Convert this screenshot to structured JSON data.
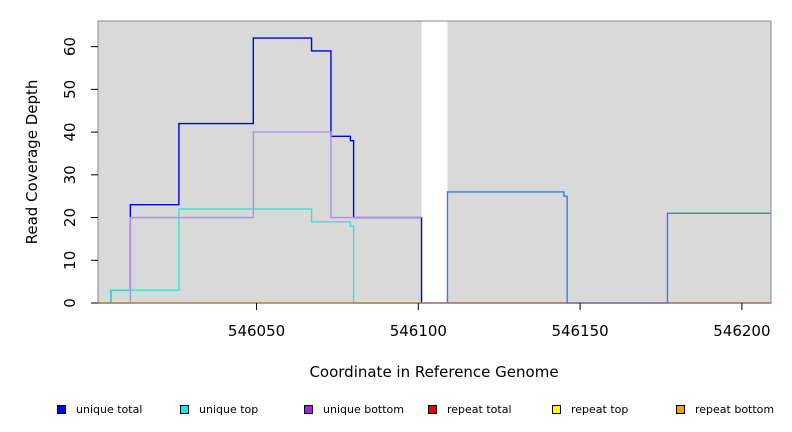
{
  "chart_data": {
    "type": "line",
    "xlabel": "Coordinate in Reference Genome",
    "ylabel": "Read Coverage Depth",
    "xlim": [
      546001,
      546209
    ],
    "ylim": [
      0,
      66
    ],
    "x_ticks": [
      546050,
      546100,
      546150,
      546200
    ],
    "y_ticks": [
      0,
      10,
      20,
      30,
      40,
      50,
      60
    ],
    "x_tick_labels": [
      "546050",
      "546100",
      "546150",
      "546200"
    ],
    "y_tick_labels": [
      "0",
      "10",
      "20",
      "30",
      "40",
      "50",
      "60"
    ],
    "grid": false,
    "background_color": "#d9d9d9",
    "gap_regions": [
      [
        546101,
        546109
      ]
    ],
    "series": [
      {
        "name": "unique total",
        "color": "#0000ee",
        "points": [
          [
            546001,
            0
          ],
          [
            546005,
            0
          ],
          [
            546005,
            3
          ],
          [
            546011,
            3
          ],
          [
            546011,
            23
          ],
          [
            546026,
            23
          ],
          [
            546026,
            42
          ],
          [
            546049,
            42
          ],
          [
            546049,
            62
          ],
          [
            546067,
            62
          ],
          [
            546067,
            59
          ],
          [
            546073,
            59
          ],
          [
            546073,
            39
          ],
          [
            546079,
            39
          ],
          [
            546079,
            38
          ],
          [
            546080,
            38
          ],
          [
            546080,
            20
          ],
          [
            546101,
            20
          ],
          [
            546101,
            0
          ]
        ]
      },
      {
        "name": "unique top",
        "color": "#40e0d0",
        "points": [
          [
            546001,
            0
          ],
          [
            546005,
            0
          ],
          [
            546005,
            3
          ],
          [
            546026,
            3
          ],
          [
            546026,
            22
          ],
          [
            546067,
            22
          ],
          [
            546067,
            19
          ],
          [
            546079,
            19
          ],
          [
            546079,
            18
          ],
          [
            546080,
            18
          ],
          [
            546080,
            0
          ],
          [
            546101,
            0
          ]
        ]
      },
      {
        "name": "unique bottom",
        "color": "#b08ee8",
        "points": [
          [
            546001,
            0
          ],
          [
            546011,
            0
          ],
          [
            546011,
            20
          ],
          [
            546049,
            20
          ],
          [
            546049,
            40
          ],
          [
            546073,
            40
          ],
          [
            546073,
            20
          ],
          [
            546101,
            20
          ]
        ]
      },
      {
        "name": "repeat total",
        "color": "#dd2222",
        "points": [
          [
            546001,
            0
          ],
          [
            546209,
            0
          ]
        ]
      },
      {
        "name": "repeat top",
        "color": "#eeee00",
        "points": [
          [
            546001,
            0
          ],
          [
            546101,
            0
          ]
        ]
      },
      {
        "name": "repeat bottom",
        "color": "#f0a000",
        "points": [
          [
            546001,
            0
          ],
          [
            546101,
            0
          ]
        ]
      },
      {
        "name": "unique total (right segment)",
        "color": "#3a7ae8",
        "points": [
          [
            546109,
            0
          ],
          [
            546109,
            26
          ],
          [
            546145,
            26
          ],
          [
            546145,
            25
          ],
          [
            546146,
            25
          ],
          [
            546146,
            0
          ],
          [
            546177,
            0
          ],
          [
            546177,
            21
          ],
          [
            546209,
            21
          ]
        ]
      }
    ]
  },
  "legend": {
    "items": [
      {
        "label": "unique total",
        "color": "#0000ee"
      },
      {
        "label": "unique top",
        "color": "#00eeee"
      },
      {
        "label": "unique bottom",
        "color": "#a020f0"
      },
      {
        "label": "repeat total",
        "color": "#ee0000"
      },
      {
        "label": "repeat top",
        "color": "#ffff00"
      },
      {
        "label": "repeat bottom",
        "color": "#f0a000"
      }
    ]
  }
}
